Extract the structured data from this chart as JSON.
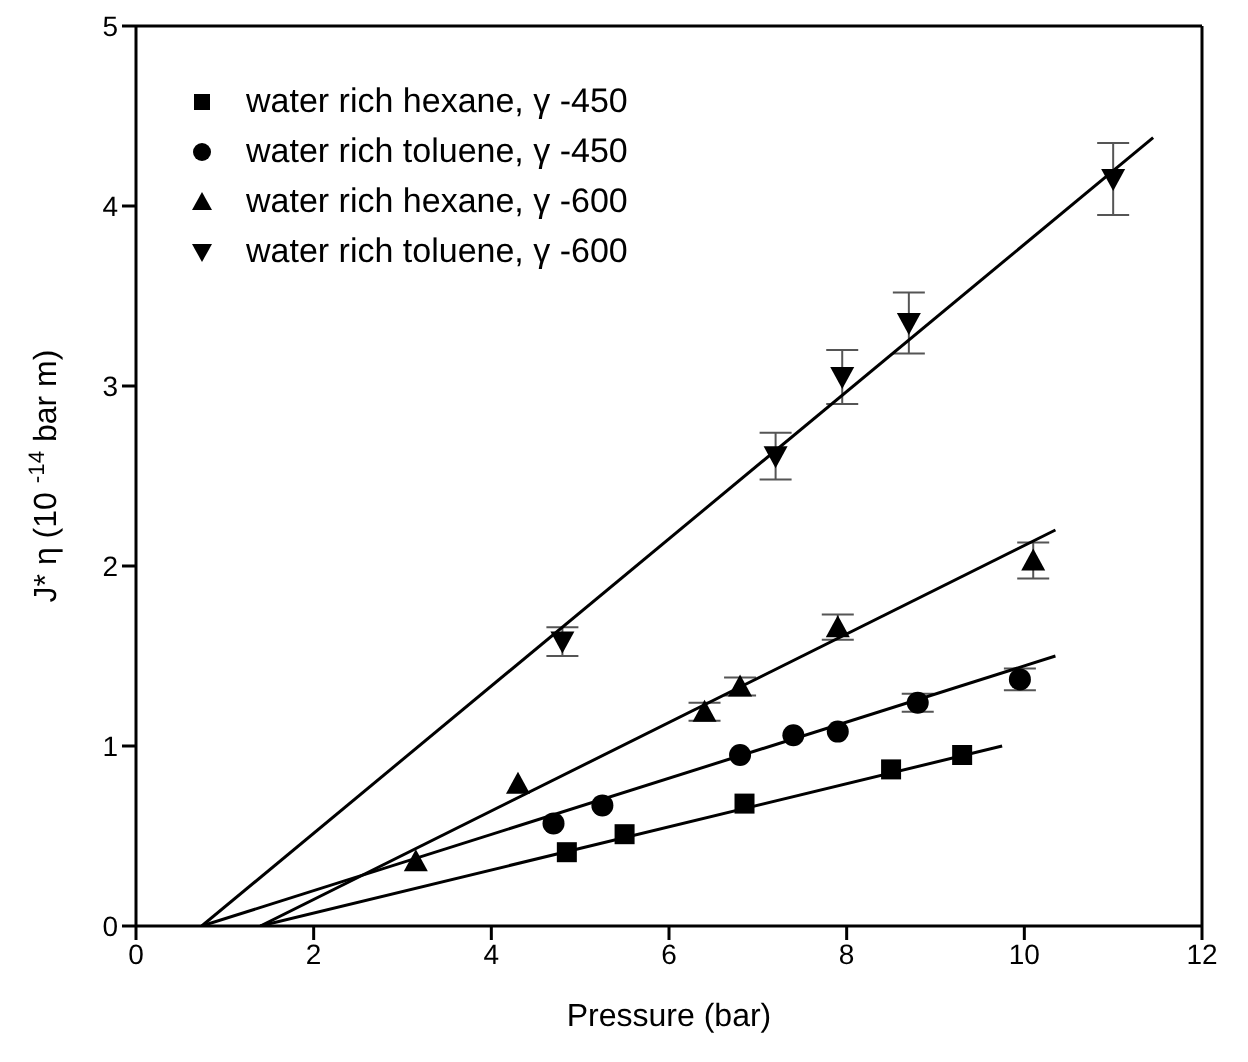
{
  "chart_data": {
    "type": "scatter",
    "xlabel": "Pressure (bar)",
    "ylabel": "J* η (10 $^{-14}$ bar m)",
    "xlim": [
      0,
      12
    ],
    "xticks": [
      0,
      2,
      4,
      6,
      8,
      10,
      12
    ],
    "ylim": [
      0,
      5
    ],
    "yticks": [
      0,
      1,
      2,
      3,
      4,
      5
    ],
    "grid": false,
    "legend": "top left",
    "series": [
      {
        "name": "water rich hexane, γ -450",
        "color": "#000000",
        "marker": "square",
        "x": [
          4.85,
          5.5,
          6.85,
          8.5,
          9.3
        ],
        "values": [
          0.41,
          0.51,
          0.68,
          0.87,
          0.95
        ]
      },
      {
        "name": "water rich toluene, γ -450",
        "color": "#000000",
        "marker": "circle",
        "x": [
          4.7,
          5.25,
          6.8,
          7.4,
          7.9,
          8.8,
          9.95
        ],
        "values": [
          0.57,
          0.67,
          0.95,
          1.06,
          1.08,
          1.24,
          1.37
        ],
        "errors": [
          null,
          null,
          null,
          null,
          null,
          0.05,
          0.06
        ]
      },
      {
        "name": "water rich hexane, γ -600",
        "color": "#000000",
        "marker": "triangle",
        "x": [
          3.15,
          4.3,
          6.4,
          6.8,
          7.9,
          10.1
        ],
        "values": [
          0.36,
          0.79,
          1.19,
          1.33,
          1.66,
          2.03
        ],
        "errors": [
          null,
          null,
          0.05,
          0.05,
          0.07,
          0.1
        ]
      },
      {
        "name": "water rich toluene, γ -600",
        "color": "#000000",
        "marker": "triangle-down",
        "x": [
          4.8,
          7.2,
          7.95,
          8.7,
          11.0
        ],
        "values": [
          1.58,
          2.61,
          3.05,
          3.35,
          4.15
        ],
        "errors": [
          0.08,
          0.13,
          0.15,
          0.17,
          0.2
        ]
      },
      {
        "type": "line",
        "color": "#000000",
        "marker": "none",
        "x": [
          1.4,
          9.75
        ],
        "values": [
          0,
          1.0
        ]
      },
      {
        "type": "line",
        "color": "#000000",
        "marker": "none",
        "x": [
          0.74,
          10.35
        ],
        "values": [
          0,
          1.5
        ]
      },
      {
        "type": "line",
        "color": "#000000",
        "marker": "none",
        "x": [
          1.4,
          10.35
        ],
        "values": [
          0,
          2.2
        ]
      },
      {
        "type": "line",
        "color": "#000000",
        "marker": "none",
        "x": [
          0.74,
          11.45
        ],
        "values": [
          0,
          4.38
        ]
      }
    ]
  }
}
